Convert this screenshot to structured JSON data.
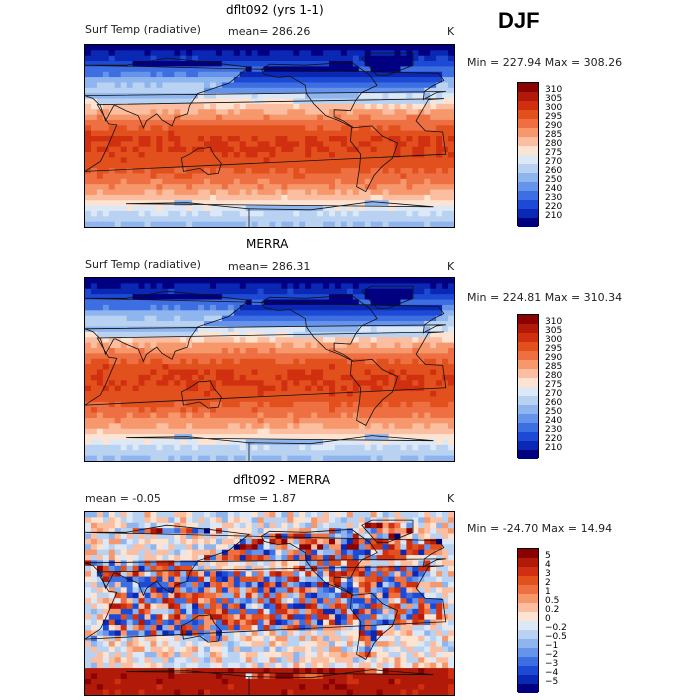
{
  "season": "DJF",
  "panels": [
    {
      "title": "dflt092 (yrs 1-1)",
      "left_label": "Surf Temp (radiative)",
      "mid_label": "mean= 286.26",
      "unit": "K",
      "minmax": "Min = 227.94  Max = 308.26",
      "field": "temp",
      "colorbar": {
        "labels": [
          "310",
          "305",
          "300",
          "295",
          "290",
          "285",
          "280",
          "275",
          "270",
          "260",
          "250",
          "240",
          "230",
          "220",
          "210"
        ],
        "colors": [
          "#8b0000",
          "#b11a08",
          "#d03010",
          "#e2501e",
          "#ee7042",
          "#f6976c",
          "#fbbea0",
          "#fde4d2",
          "#dce8f6",
          "#b9d2f2",
          "#8fb5ee",
          "#6594ea",
          "#3d6fe2",
          "#1d4ad4",
          "#0a28b4",
          "#000080"
        ]
      }
    },
    {
      "title": "MERRA",
      "left_label": "Surf Temp (radiative)",
      "mid_label": "mean= 286.31",
      "unit": "K",
      "minmax": "Min = 224.81  Max = 310.34",
      "field": "temp",
      "colorbar": {
        "labels": [
          "310",
          "305",
          "300",
          "295",
          "290",
          "285",
          "280",
          "275",
          "270",
          "260",
          "250",
          "240",
          "230",
          "220",
          "210"
        ],
        "colors": [
          "#8b0000",
          "#b11a08",
          "#d03010",
          "#e2501e",
          "#ee7042",
          "#f6976c",
          "#fbbea0",
          "#fde4d2",
          "#dce8f6",
          "#b9d2f2",
          "#8fb5ee",
          "#6594ea",
          "#3d6fe2",
          "#1d4ad4",
          "#0a28b4",
          "#000080"
        ]
      }
    },
    {
      "title": "dflt092 - MERRA",
      "left_label": "mean =   -0.05",
      "mid_label": "rmse =    1.87",
      "unit": "K",
      "minmax": "Min = -24.70  Max =   14.94",
      "field": "diff",
      "colorbar": {
        "labels": [
          "5",
          "4",
          "3",
          "2",
          "1",
          "0.5",
          "0.2",
          "0",
          "−0.2",
          "−0.5",
          "−1",
          "−2",
          "−3",
          "−4",
          "−5"
        ],
        "colors": [
          "#8b0000",
          "#b11a08",
          "#d03010",
          "#e2501e",
          "#ee7042",
          "#f6976c",
          "#fbbea0",
          "#fde4d2",
          "#dce8f6",
          "#b9d2f2",
          "#8fb5ee",
          "#6594ea",
          "#3d6fe2",
          "#1d4ad4",
          "#0a28b4",
          "#000080"
        ]
      }
    }
  ]
}
